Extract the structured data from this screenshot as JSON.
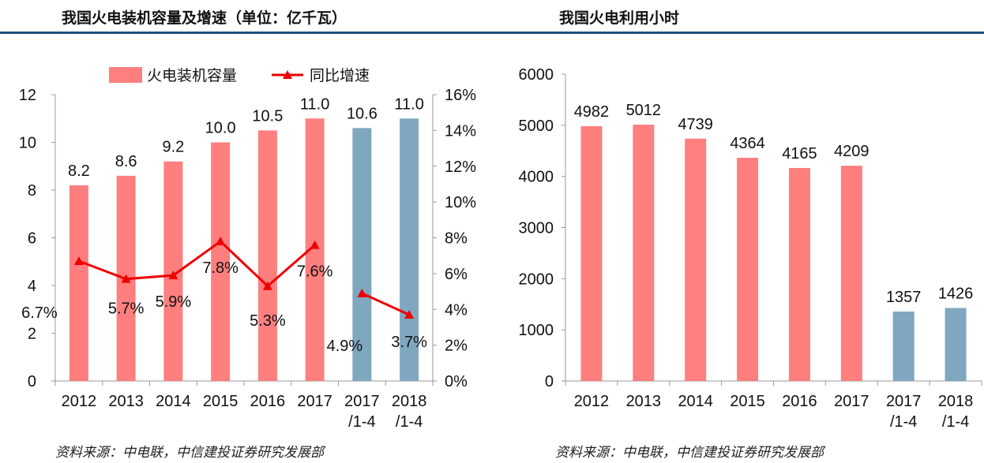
{
  "colors": {
    "primary_bar": "#ff7f7f",
    "secondary_bar": "#7fa7c0",
    "line": "#ee0000",
    "header_rule": "#1f4e79"
  },
  "chart_data": [
    {
      "type": "bar",
      "title": "我国火电装机容量及增速（单位：亿千瓦）",
      "categories": [
        {
          "line1": "2012",
          "line2": ""
        },
        {
          "line1": "2013",
          "line2": ""
        },
        {
          "line1": "2014",
          "line2": ""
        },
        {
          "line1": "2015",
          "line2": ""
        },
        {
          "line1": "2016",
          "line2": ""
        },
        {
          "line1": "2017",
          "line2": ""
        },
        {
          "line1": "2017",
          "line2": "/1-4"
        },
        {
          "line1": "2018",
          "line2": "/1-4"
        }
      ],
      "series": [
        {
          "name": "火电装机容量",
          "axis": "left",
          "values": [
            8.2,
            8.6,
            9.2,
            10.0,
            10.5,
            11.0,
            10.6,
            11.0
          ],
          "labels": [
            "8.2",
            "8.6",
            "9.2",
            "10.0",
            "10.5",
            "11.0",
            "10.6",
            "11.0"
          ]
        },
        {
          "name": "同比增速",
          "axis": "right",
          "values": [
            6.7,
            5.7,
            5.9,
            7.8,
            5.3,
            7.6,
            4.9,
            3.7
          ],
          "labels": [
            "6.7%",
            "5.7%",
            "5.9%",
            "7.8%",
            "5.3%",
            "7.6%",
            "4.9%",
            "3.7%"
          ],
          "segments": [
            [
              0,
              5
            ],
            [
              6,
              7
            ]
          ]
        }
      ],
      "ylim": [
        0,
        12
      ],
      "yticks": [
        "0",
        "2",
        "4",
        "6",
        "8",
        "10",
        "12"
      ],
      "y2lim": [
        0,
        16
      ],
      "y2ticks": [
        "0%",
        "2%",
        "4%",
        "6%",
        "8%",
        "10%",
        "12%",
        "14%",
        "16%"
      ],
      "legend": [
        "火电装机容量",
        "同比增速"
      ],
      "source": "资料来源：中电联，中信建投证券研究发展部"
    },
    {
      "type": "bar",
      "title": "我国火电利用小时",
      "categories": [
        {
          "line1": "2012",
          "line2": ""
        },
        {
          "line1": "2013",
          "line2": ""
        },
        {
          "line1": "2014",
          "line2": ""
        },
        {
          "line1": "2015",
          "line2": ""
        },
        {
          "line1": "2016",
          "line2": ""
        },
        {
          "line1": "2017",
          "line2": ""
        },
        {
          "line1": "2017",
          "line2": "/1-4"
        },
        {
          "line1": "2018",
          "line2": "/1-4"
        }
      ],
      "values": [
        4982,
        5012,
        4739,
        4364,
        4165,
        4209,
        1357,
        1426
      ],
      "labels": [
        "4982",
        "5012",
        "4739",
        "4364",
        "4165",
        "4209",
        "1357",
        "1426"
      ],
      "ylim": [
        0,
        6000
      ],
      "yticks": [
        "0",
        "1000",
        "2000",
        "3000",
        "4000",
        "5000",
        "6000"
      ],
      "source": "资料来源：中电联，中信建投证券研究发展部"
    }
  ]
}
